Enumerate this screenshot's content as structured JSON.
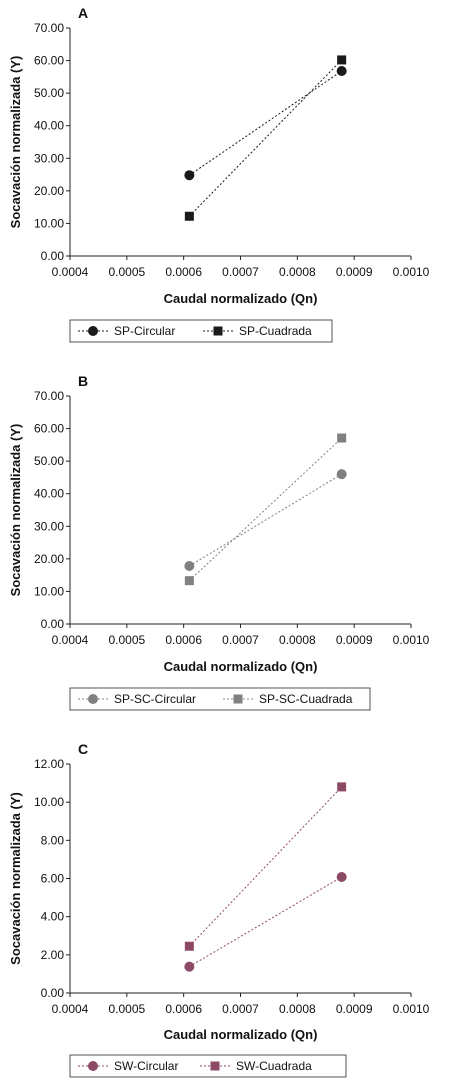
{
  "chart_data": [
    {
      "type": "scatter",
      "panel_label": "A",
      "xlabel": "Caudal normalizado (Qn)",
      "ylabel": "Socavación normalizada (Y)",
      "xlim": [
        0.0004,
        0.001
      ],
      "ylim": [
        0,
        70
      ],
      "x_ticks": [
        "0.0004",
        "0.0005",
        "0.0006",
        "0.0007",
        "0.0008",
        "0.0009",
        "0.0010"
      ],
      "y_ticks": [
        "0.00",
        "10.00",
        "20.00",
        "30.00",
        "40.00",
        "50.00",
        "60.00",
        "70.00"
      ],
      "series": [
        {
          "name": "SP-Circular",
          "marker": "circle",
          "color": "#1a1a1a",
          "x": [
            0.00061,
            0.000878
          ],
          "y": [
            24.8,
            56.8
          ]
        },
        {
          "name": "SP-Cuadrada",
          "marker": "square",
          "color": "#1a1a1a",
          "x": [
            0.00061,
            0.000878
          ],
          "y": [
            12.2,
            60.2
          ]
        }
      ]
    },
    {
      "type": "scatter",
      "panel_label": "B",
      "xlabel": "Caudal normalizado (Qn)",
      "ylabel": "Socavación normalizada (Y)",
      "xlim": [
        0.0004,
        0.001
      ],
      "ylim": [
        0,
        70
      ],
      "x_ticks": [
        "0.0004",
        "0.0005",
        "0.0006",
        "0.0007",
        "0.0008",
        "0.0009",
        "0.0010"
      ],
      "y_ticks": [
        "0.00",
        "10.00",
        "20.00",
        "30.00",
        "40.00",
        "50.00",
        "60.00",
        "70.00"
      ],
      "series": [
        {
          "name": "SP-SC-Circular",
          "marker": "circle",
          "color": "#808080",
          "x": [
            0.00061,
            0.000878
          ],
          "y": [
            17.8,
            46.0
          ]
        },
        {
          "name": "SP-SC-Cuadrada",
          "marker": "square",
          "color": "#808080",
          "x": [
            0.00061,
            0.000878
          ],
          "y": [
            13.3,
            57.1
          ]
        }
      ]
    },
    {
      "type": "scatter",
      "panel_label": "C",
      "xlabel": "Caudal normalizado (Qn)",
      "ylabel": "Socavación normalizada (Y)",
      "xlim": [
        0.0004,
        0.001
      ],
      "ylim": [
        0,
        12
      ],
      "x_ticks": [
        "0.0004",
        "0.0005",
        "0.0006",
        "0.0007",
        "0.0008",
        "0.0009",
        "0.0010"
      ],
      "y_ticks": [
        "0.00",
        "2.00",
        "4.00",
        "6.00",
        "8.00",
        "10.00",
        "12.00"
      ],
      "series": [
        {
          "name": "SW-Circular",
          "marker": "circle",
          "color": "#8c4a66",
          "x": [
            0.00061,
            0.000878
          ],
          "y": [
            1.38,
            6.08
          ]
        },
        {
          "name": "SW-Cuadrada",
          "marker": "square",
          "color": "#8c4a66",
          "x": [
            0.00061,
            0.000878
          ],
          "y": [
            2.45,
            10.8
          ]
        }
      ]
    }
  ]
}
